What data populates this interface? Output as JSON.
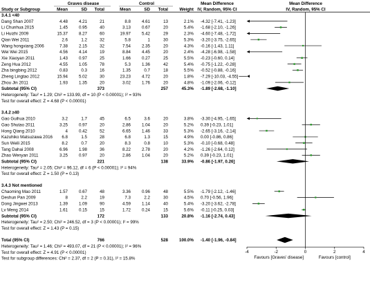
{
  "headers": {
    "group1_title": "Graves disease",
    "group2_title": "Control",
    "study_col": "Study or Subgroup",
    "mean": "Mean",
    "sd": "SD",
    "total": "Total",
    "weight": "Weight",
    "md_title": "Mean Difference",
    "md_sub": "IV, Random, 95% CI"
  },
  "chart_data": {
    "type": "forest",
    "x_axis": {
      "scale": "linear",
      "range": [
        -4,
        4
      ],
      "ticks": [
        -4,
        -2,
        0,
        2,
        4
      ],
      "tick_labels": [
        "-4",
        "-2",
        "0",
        "2",
        "4"
      ],
      "label_left": "Favours [Graves' disease]",
      "label_right": "Favours [control]"
    },
    "subgroups": [
      {
        "title": "3.4.1 <40",
        "studies": [
          {
            "name": "Dang Shan 2007",
            "m1": "4.48",
            "sd1": "4.21",
            "n1": "21",
            "m2": "8.8",
            "sd2": "4.61",
            "n2": "13",
            "weight": "2.1%",
            "ci_text": "-4.32 [-7.41, -1.23]",
            "md": -4.32,
            "lo": -7.41,
            "hi": -1.23
          },
          {
            "name": "Li Chunhua 2015",
            "m1": "1.45",
            "sd1": "0.95",
            "n1": "40",
            "m2": "3.13",
            "sd2": "0.67",
            "n2": "20",
            "weight": "5.4%",
            "ci_text": "-1.68 [-2.10, -1.26]",
            "md": -1.68,
            "lo": -2.1,
            "hi": -1.26
          },
          {
            "name": "Li Huizhi 2009",
            "m1": "15.37",
            "sd1": "8.27",
            "n1": "60",
            "m2": "19.97",
            "sd2": "5.42",
            "n2": "29",
            "weight": "2.3%",
            "ci_text": "-4.60 [-7.48, -1.72]",
            "md": -4.6,
            "lo": -7.48,
            "hi": -1.72
          },
          {
            "name": "Qian Wei 2011",
            "m1": "2.6",
            "sd1": "1.2",
            "n1": "32",
            "m2": "5.8",
            "sd2": "1",
            "n2": "30",
            "weight": "5.3%",
            "ci_text": "-3.20 [-3.75, -2.65]",
            "md": -3.2,
            "lo": -3.75,
            "hi": -2.65
          },
          {
            "name": "Wang hongxiang 2006",
            "m1": "7.38",
            "sd1": "2.15",
            "n1": "32",
            "m2": "7.54",
            "sd2": "2.35",
            "n2": "20",
            "weight": "4.3%",
            "ci_text": "-0.16 [-1.43, 1.11]",
            "md": -0.16,
            "lo": -1.43,
            "hi": 1.11
          },
          {
            "name": "Wei Wei 2015",
            "m1": "4.56",
            "sd1": "4.14",
            "n1": "19",
            "m2": "8.84",
            "sd2": "4.45",
            "n2": "20",
            "weight": "2.4%",
            "ci_text": "-4.28 [-6.98, -1.58]",
            "md": -4.28,
            "lo": -6.98,
            "hi": -1.58
          },
          {
            "name": "Xie Xiaoyan 2011",
            "m1": "1.43",
            "sd1": "0.97",
            "n1": "25",
            "m2": "1.66",
            "sd2": "0.27",
            "n2": "25",
            "weight": "5.5%",
            "ci_text": "-0.23 [-0.60, 0.14]",
            "md": -0.23,
            "lo": -0.6,
            "hi": 0.14
          },
          {
            "name": "Zeng Hua 2012",
            "m1": "4.55",
            "sd1": "1.05",
            "n1": "78",
            "m2": "5.3",
            "sd2": "1.36",
            "n2": "42",
            "weight": "5.4%",
            "ci_text": "-0.75 [-1.22, -0.28]",
            "md": -0.75,
            "lo": -1.22,
            "hi": -0.28
          },
          {
            "name": "Zha bingbing 2012",
            "m1": "0.83",
            "sd1": "0.3",
            "n1": "16",
            "m2": "1.35",
            "sd2": "0.7",
            "n2": "18",
            "weight": "5.5%",
            "ci_text": "-0.52 [-0.88, -0.16]",
            "md": -0.52,
            "lo": -0.88,
            "hi": -0.16
          },
          {
            "name": "Zheng Lingtao 2012",
            "m1": "15.94",
            "sd1": "5.02",
            "n1": "30",
            "m2": "23.23",
            "sd2": "4.72",
            "n2": "20",
            "weight": "1.8%",
            "ci_text": "-7.29 [-10.03, -4.55]",
            "md": -7.29,
            "lo": -10.03,
            "hi": -4.55
          },
          {
            "name": "Zhou Jin 2011",
            "m1": "1.93",
            "sd1": "1.35",
            "n1": "20",
            "m2": "3.02",
            "sd2": "1.76",
            "n2": "20",
            "weight": "4.8%",
            "ci_text": "-1.09 [-2.06, -0.12]",
            "md": -1.09,
            "lo": -2.06,
            "hi": -0.12
          }
        ],
        "subtotal": {
          "label": "Subtotal (95% CI)",
          "n1": "373",
          "n2": "257",
          "weight": "45.3%",
          "ci_text": "-1.89 [-2.68, -1.10]",
          "md": -1.89,
          "lo": -2.68,
          "hi": -1.1
        },
        "heterogeneity": "Heterogeneity: Tau² = 1.29; Chi² = 133.99, df = 10 (P < 0.00001); I² = 93%",
        "overall_effect": "Test for overall effect: Z = 4.68 (P < 0.00001)"
      },
      {
        "title": "3.4.2 ≥40",
        "studies": [
          {
            "name": "Gao Guihua 2010",
            "m1": "3.2",
            "sd1": "1.7",
            "n1": "45",
            "m2": "6.5",
            "sd2": "3.6",
            "n2": "20",
            "weight": "3.8%",
            "ci_text": "-3.30 [-4.95, -1.65]",
            "md": -3.3,
            "lo": -4.95,
            "hi": -1.65
          },
          {
            "name": "Gao Shutao 2011",
            "m1": "3.25",
            "sd1": "0.97",
            "n1": "20",
            "m2": "2.86",
            "sd2": "1.04",
            "n2": "20",
            "weight": "5.2%",
            "ci_text": "0.39 [-0.23, 1.01]",
            "md": 0.39,
            "lo": -0.23,
            "hi": 1.01
          },
          {
            "name": "Hong Qiang 2010",
            "m1": "4",
            "sd1": "0.42",
            "n1": "52",
            "m2": "6.65",
            "sd2": "1.46",
            "n2": "33",
            "weight": "5.3%",
            "ci_text": "-2.65 [-3.16, -2.14]",
            "md": -2.65,
            "lo": -3.16,
            "hi": -2.14
          },
          {
            "name": "Kazuhiko Matsuzawa 2016",
            "m1": "6.8",
            "sd1": "1.5",
            "n1": "28",
            "m2": "6.8",
            "sd2": "1.3",
            "n2": "15",
            "weight": "4.9%",
            "ci_text": "0.00 [-0.86, 0.86]",
            "md": 0.0,
            "lo": -0.86,
            "hi": 0.86
          },
          {
            "name": "Sun Weili 2015",
            "m1": "8.2",
            "sd1": "0.7",
            "n1": "20",
            "m2": "8.3",
            "sd2": "0.8",
            "n2": "10",
            "weight": "5.3%",
            "ci_text": "-0.10 [-0.68, 0.48]",
            "md": -0.1,
            "lo": -0.68,
            "hi": 0.48
          },
          {
            "name": "Tang Dahai 2008",
            "m1": "6.96",
            "sd1": "1.98",
            "n1": "36",
            "m2": "8.22",
            "sd2": "2.78",
            "n2": "20",
            "weight": "4.2%",
            "ci_text": "-1.26 [-2.64, 0.12]",
            "md": -1.26,
            "lo": -2.64,
            "hi": 0.12
          },
          {
            "name": "Zhao Wenyan 2011",
            "m1": "3.25",
            "sd1": "0.97",
            "n1": "20",
            "m2": "2.86",
            "sd2": "1.04",
            "n2": "20",
            "weight": "5.2%",
            "ci_text": "0.39 [-0.23, 1.01]",
            "md": 0.39,
            "lo": -0.23,
            "hi": 1.01
          }
        ],
        "subtotal": {
          "label": "Subtotal (95% CI)",
          "n1": "221",
          "n2": "138",
          "weight": "33.9%",
          "ci_text": "-0.86 [-1.97, 0.26]",
          "md": -0.86,
          "lo": -1.97,
          "hi": 0.26
        },
        "heterogeneity": "Heterogeneity: Tau² = 2.05; Chi² = 96.12, df = 6 (P < 0.00001); I² = 94%",
        "overall_effect": "Test for overall effect: Z = 1.50 (P = 0.13)"
      },
      {
        "title": "3.4.3 Not mentioned",
        "studies": [
          {
            "name": "Chaoming Mao 2011",
            "m1": "1.57",
            "sd1": "0.67",
            "n1": "48",
            "m2": "3.36",
            "sd2": "0.96",
            "n2": "48",
            "weight": "5.5%",
            "ci_text": "-1.79 [-2.12, -1.46]",
            "md": -1.79,
            "lo": -2.12,
            "hi": -1.46
          },
          {
            "name": "Deshun Pan 2009",
            "m1": "8",
            "sd1": "2.2",
            "n1": "19",
            "m2": "7.3",
            "sd2": "2.2",
            "n2": "30",
            "weight": "4.5%",
            "ci_text": "0.70 [-0.56, 1.96]",
            "md": 0.7,
            "lo": -0.56,
            "hi": 1.96
          },
          {
            "name": "Dong Jingwei 2013",
            "m1": "1.39",
            "sd1": "1.09",
            "n1": "90",
            "m2": "4.59",
            "sd2": "1.14",
            "n2": "40",
            "weight": "5.4%",
            "ci_text": "-3.20 [-3.62, -2.78]",
            "md": -3.2,
            "lo": -3.62,
            "hi": -2.78
          },
          {
            "name": "Lv Meng 2014",
            "m1": "1.61",
            "sd1": "0.15",
            "n1": "15",
            "m2": "1.72",
            "sd2": "0.24",
            "n2": "15",
            "weight": "5.6%",
            "ci_text": "-0.11 [-0.25, 0.03]",
            "md": -0.11,
            "lo": -0.25,
            "hi": 0.03
          }
        ],
        "subtotal": {
          "label": "Subtotal (95% CI)",
          "n1": "172",
          "n2": "133",
          "weight": "20.8%",
          "ci_text": "-1.16 [-2.74, 0.43]",
          "md": -1.16,
          "lo": -2.74,
          "hi": 0.43
        },
        "heterogeneity": "Heterogeneity: Tau² = 2.50; Chi² = 246.52, df = 3 (P < 0.00001); I² = 99%",
        "overall_effect": "Test for overall effect: Z = 1.43 (P = 0.15)"
      }
    ],
    "total": {
      "label": "Total (95% CI)",
      "n1": "766",
      "n2": "528",
      "weight": "100.0%",
      "ci_text": "-1.40 [-1.96, -0.84]",
      "md": -1.4,
      "lo": -1.96,
      "hi": -0.84
    },
    "footer": [
      "Heterogeneity: Tau² = 1.46; Chi² = 493.07, df = 21 (P < 0.00001); I² = 96%",
      "Test for overall effect: Z = 4.91 (P < 0.00001)",
      "Test for subgroup differences: Chi² = 2.37, df = 2 (P = 0.31), I² = 15.8%"
    ],
    "colors": {
      "point": "#2e9b2e",
      "diamond": "#000000",
      "line": "#000000",
      "header_rule": "#555555"
    }
  }
}
